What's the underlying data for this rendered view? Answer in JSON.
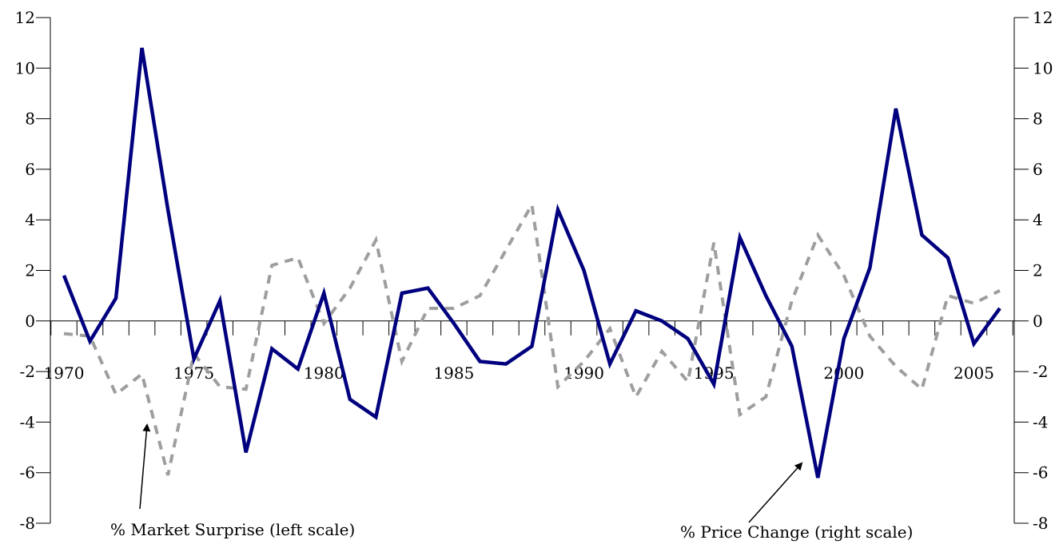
{
  "chart_data": {
    "type": "line",
    "title": "",
    "x": [
      1970,
      1971,
      1972,
      1973,
      1974,
      1975,
      1976,
      1977,
      1978,
      1979,
      1980,
      1981,
      1982,
      1983,
      1984,
      1985,
      1986,
      1987,
      1988,
      1989,
      1990,
      1991,
      1992,
      1993,
      1994,
      1995,
      1996,
      1997,
      1998,
      1999,
      2000,
      2001,
      2002,
      2003,
      2004,
      2005,
      2006
    ],
    "xticks": [
      1970,
      1975,
      1980,
      1985,
      1990,
      1995,
      2000,
      2005
    ],
    "xtick_labels": [
      "1970",
      "1975",
      "1980",
      "1985",
      "1990",
      "1995",
      "2000",
      "2005"
    ],
    "yticks": [
      12,
      10,
      8,
      6,
      4,
      2,
      0,
      -2,
      -4,
      -6,
      -8
    ],
    "ytick_labels": [
      "12",
      "10",
      "8",
      "6",
      "4",
      "2",
      "0",
      "-2",
      "-4",
      "-6",
      "-8"
    ],
    "left_ylim": [
      -8,
      12
    ],
    "right_ylim": [
      -8,
      12
    ],
    "series": [
      {
        "name": "% Market Surprise (left scale)",
        "axis": "left",
        "style": "dashed",
        "color": "#9e9e9e",
        "values": [
          -0.5,
          -0.6,
          -2.9,
          -2.1,
          -6.1,
          -1.3,
          -2.6,
          -2.7,
          2.2,
          2.5,
          -0.1,
          1.3,
          3.2,
          -1.6,
          0.5,
          0.5,
          1.0,
          2.8,
          4.6,
          -2.6,
          -1.6,
          -0.3,
          -3.0,
          -1.2,
          -2.4,
          3.1,
          -3.7,
          -3.0,
          0.8,
          3.4,
          1.8,
          -0.6,
          -1.8,
          -2.7,
          1.0,
          0.7,
          1.2
        ]
      },
      {
        "name": "% Price Change (right scale)",
        "axis": "right",
        "style": "solid",
        "color": "#00007f",
        "values": [
          1.8,
          -0.8,
          0.9,
          10.8,
          4.4,
          -1.5,
          0.8,
          -5.2,
          -1.1,
          -1.9,
          1.1,
          -3.1,
          -3.8,
          1.1,
          1.3,
          -0.1,
          -1.6,
          -1.7,
          -1.0,
          4.4,
          2.0,
          -1.7,
          0.4,
          0.0,
          -0.7,
          -2.5,
          3.3,
          1.0,
          -1.0,
          -6.2,
          -0.7,
          2.1,
          8.4,
          3.4,
          2.5,
          -0.9,
          0.5
        ]
      }
    ],
    "annotations": [
      {
        "text": "% Market Surprise (left scale)",
        "points_to_series": 0
      },
      {
        "text": "% Price Change (right scale)",
        "points_to_series": 1
      }
    ],
    "grid": false,
    "legend": "none (annotation labels with arrows)"
  }
}
